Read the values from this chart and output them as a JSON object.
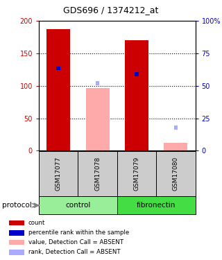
{
  "title": "GDS696 / 1374212_at",
  "samples": [
    "GSM17077",
    "GSM17078",
    "GSM17079",
    "GSM17080"
  ],
  "bar_values": [
    187,
    0,
    170,
    0
  ],
  "bar_absent_values": [
    0,
    97,
    0,
    12
  ],
  "rank_values": [
    127,
    0,
    118,
    0
  ],
  "rank_absent_values": [
    0,
    104,
    0,
    36
  ],
  "ylim_left": [
    0,
    200
  ],
  "ylim_right": [
    0,
    100
  ],
  "yticks_left": [
    0,
    50,
    100,
    150,
    200
  ],
  "yticks_right": [
    0,
    25,
    50,
    75,
    100
  ],
  "ytick_labels_left": [
    "0",
    "50",
    "100",
    "150",
    "200"
  ],
  "ytick_labels_right": [
    "0",
    "25",
    "50",
    "75",
    "100%"
  ],
  "color_present_bar": "#cc0000",
  "color_absent_bar": "#ffaaaa",
  "color_present_rank": "#0000cc",
  "color_absent_rank": "#aaaaff",
  "color_control": "#99ee99",
  "color_fibronectin": "#44dd44",
  "color_group_bg": "#cccccc",
  "legend_items": [
    {
      "color": "#cc0000",
      "label": "count"
    },
    {
      "color": "#0000cc",
      "label": "percentile rank within the sample"
    },
    {
      "color": "#ffaaaa",
      "label": "value, Detection Call = ABSENT"
    },
    {
      "color": "#aaaaff",
      "label": "rank, Detection Call = ABSENT"
    }
  ]
}
